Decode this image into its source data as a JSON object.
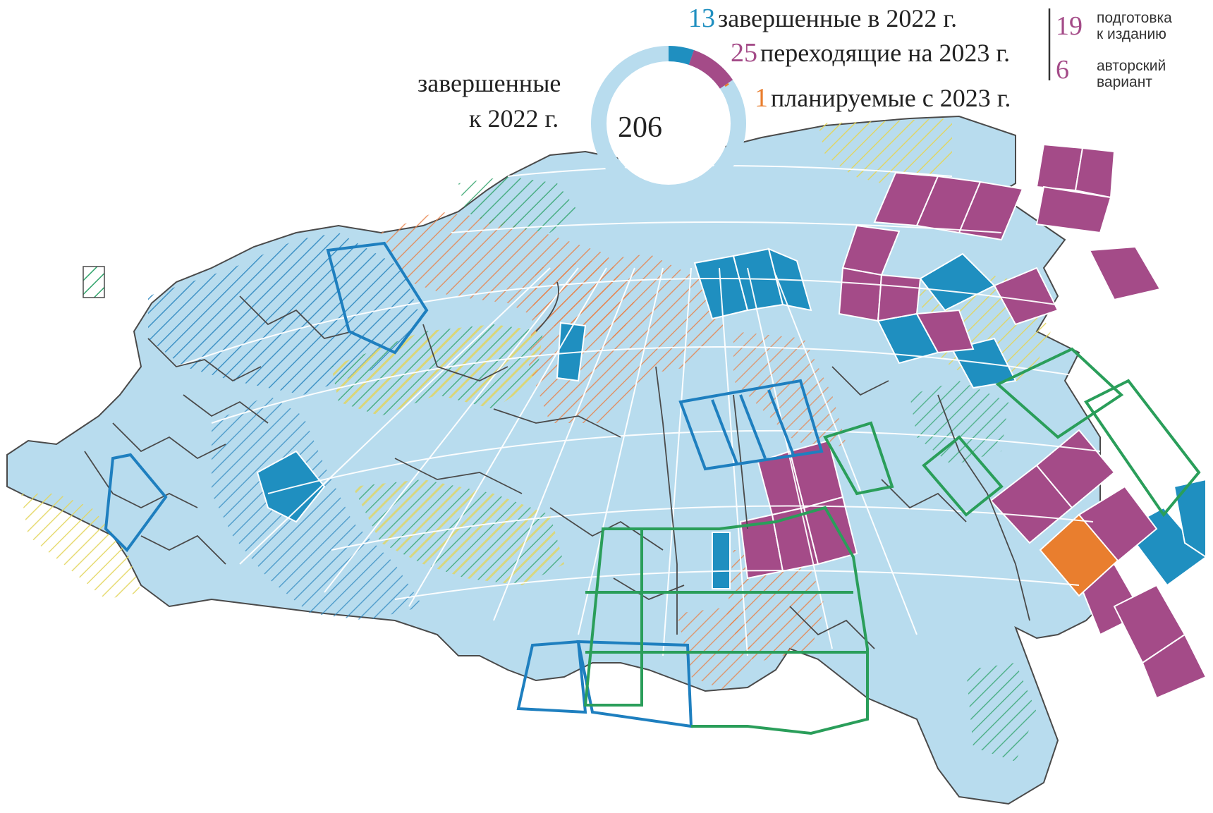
{
  "colors": {
    "completed_before_2022": "#b8dcee",
    "completed_2022": "#1f8fc0",
    "transitional_2023": "#a44b88",
    "planned_2023": "#e97e2e",
    "hatch_green": "#2fa36a",
    "hatch_orange": "#e8824a",
    "hatch_yellow": "#e3d55a",
    "hatch_blue": "#2b86bf",
    "outline_blue": "#1e7fbf",
    "outline_green": "#2a9e5a",
    "grid_line": "#ffffff",
    "border_line": "#4a4a4a"
  },
  "donut": {
    "center_value": "206",
    "label_completed_before_line1": "завершенные",
    "label_completed_before_line2": "к 2022 г.",
    "segments": [
      {
        "key": "completed_before_2022",
        "value": 206
      },
      {
        "key": "completed_2022",
        "value": 13
      },
      {
        "key": "transitional_2023",
        "value": 25
      },
      {
        "key": "planned_2023",
        "value": 1
      }
    ]
  },
  "legend": {
    "completed_2022": {
      "count": "13",
      "text": "завершенные в 2022 г."
    },
    "transitional_2023": {
      "count": "25",
      "text": "переходящие на 2023 г."
    },
    "planned_2023": {
      "count": "1",
      "text": "планируемые с 2023 г."
    },
    "breakdown": [
      {
        "count": "19",
        "line1": "подготовка",
        "line2": "к изданию"
      },
      {
        "count": "6",
        "line1": "авторский",
        "line2": "вариант"
      }
    ]
  }
}
